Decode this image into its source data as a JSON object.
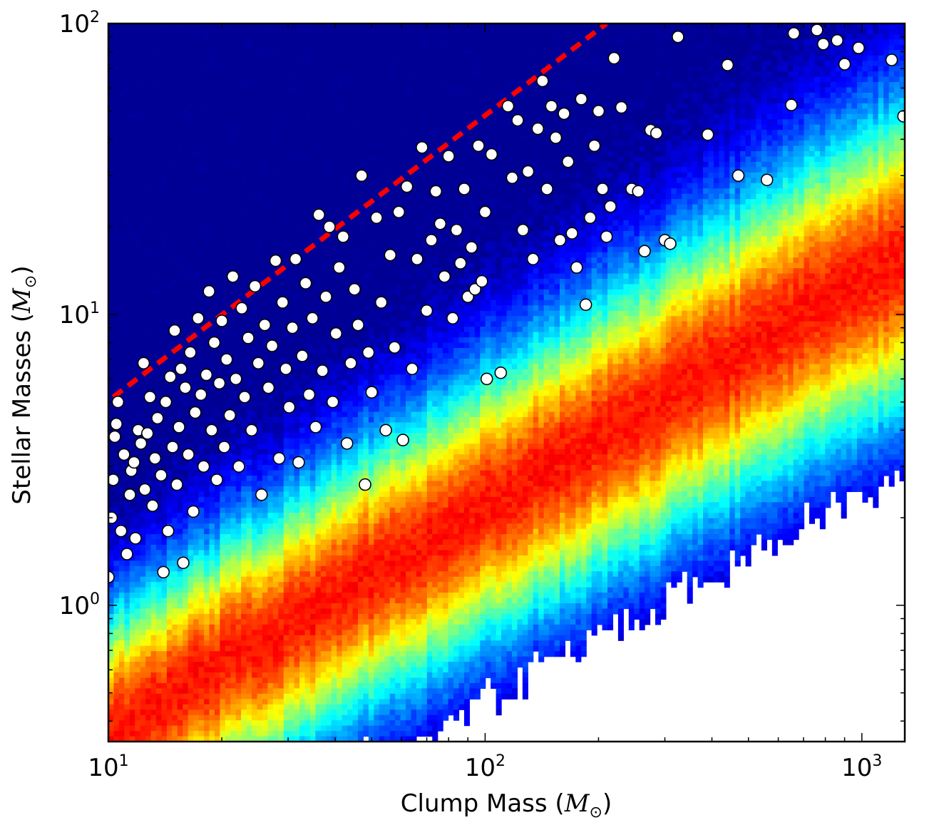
{
  "chart_data": {
    "type": "scatter",
    "xlabel": "Clump Mass (M⊙)",
    "xlabel_parts": {
      "prefix": "Clump Mass (",
      "symbol": "M",
      "sub": "⊙",
      "suffix": ")"
    },
    "ylabel": "Stellar Masses (M⊙)",
    "ylabel_parts": {
      "prefix": "Stellar Masses (",
      "symbol": "M",
      "sub": "⊙",
      "suffix": ")"
    },
    "xscale": "log",
    "yscale": "log",
    "xlim": [
      10,
      1300
    ],
    "ylim": [
      0.34,
      100
    ],
    "grid": false,
    "legend": "none",
    "x_ticks": [
      {
        "value": 10,
        "base": "10",
        "exp": "1"
      },
      {
        "value": 100,
        "base": "10",
        "exp": "2"
      },
      {
        "value": 1000,
        "base": "10",
        "exp": "3"
      }
    ],
    "y_ticks": [
      {
        "value": 1,
        "base": "10",
        "exp": "0"
      },
      {
        "value": 10,
        "base": "10",
        "exp": "1"
      },
      {
        "value": 100,
        "base": "10",
        "exp": "2"
      }
    ],
    "background": {
      "type": "heatmap",
      "colormap": "jet",
      "description_ridge": "density peak follows approx M* = 0.06 * Mclump^0.78"
    },
    "reference_line": {
      "style": "dashed",
      "color": "#ff0000",
      "points": [
        [
          10.3,
          5.2
        ],
        [
          210,
          100
        ]
      ]
    },
    "series": [
      {
        "marker": "circle",
        "fill": "#ffffff",
        "edge": "#000000",
        "points": [
          [
            10,
            1.25
          ],
          [
            10.2,
            2.0
          ],
          [
            10.3,
            2.7
          ],
          [
            10.4,
            3.8
          ],
          [
            10.5,
            4.2
          ],
          [
            10.6,
            5.0
          ],
          [
            10.8,
            1.8
          ],
          [
            11,
            3.3
          ],
          [
            11.2,
            1.5
          ],
          [
            11.4,
            2.4
          ],
          [
            11.5,
            2.9
          ],
          [
            11.7,
            3.1
          ],
          [
            11.8,
            1.7
          ],
          [
            12,
            4.0
          ],
          [
            12.2,
            3.6
          ],
          [
            12.4,
            6.8
          ],
          [
            12.5,
            2.5
          ],
          [
            12.7,
            3.9
          ],
          [
            12.9,
            5.2
          ],
          [
            13.1,
            2.2
          ],
          [
            13.3,
            3.2
          ],
          [
            13.5,
            4.4
          ],
          [
            13.8,
            2.8
          ],
          [
            14,
            1.3
          ],
          [
            14.2,
            5.0
          ],
          [
            14.4,
            1.8
          ],
          [
            14.6,
            6.1
          ],
          [
            14.8,
            3.5
          ],
          [
            15,
            8.8
          ],
          [
            15.2,
            2.6
          ],
          [
            15.4,
            4.1
          ],
          [
            15.6,
            6.5
          ],
          [
            15.8,
            1.4
          ],
          [
            16,
            5.6
          ],
          [
            16.3,
            3.3
          ],
          [
            16.5,
            7.4
          ],
          [
            16.8,
            2.1
          ],
          [
            17,
            4.6
          ],
          [
            17.3,
            9.7
          ],
          [
            17.6,
            5.3
          ],
          [
            17.9,
            3.0
          ],
          [
            18.2,
            6.2
          ],
          [
            18.5,
            12.0
          ],
          [
            18.8,
            4.0
          ],
          [
            19.1,
            8.0
          ],
          [
            19.4,
            2.7
          ],
          [
            19.7,
            5.8
          ],
          [
            20,
            9.5
          ],
          [
            20.3,
            3.5
          ],
          [
            20.6,
            7.0
          ],
          [
            21,
            4.5
          ],
          [
            21.4,
            13.5
          ],
          [
            21.8,
            6.0
          ],
          [
            22.2,
            3.0
          ],
          [
            22.6,
            10.5
          ],
          [
            23,
            5.2
          ],
          [
            23.5,
            8.3
          ],
          [
            24,
            4.0
          ],
          [
            24.5,
            12.5
          ],
          [
            25,
            6.8
          ],
          [
            25.5,
            2.4
          ],
          [
            26,
            9.2
          ],
          [
            26.6,
            5.6
          ],
          [
            27.2,
            7.8
          ],
          [
            27.8,
            15.3
          ],
          [
            28.4,
            3.2
          ],
          [
            29,
            11.0
          ],
          [
            29.6,
            6.5
          ],
          [
            30.2,
            4.8
          ],
          [
            30.8,
            9.0
          ],
          [
            31.4,
            15.5
          ],
          [
            32,
            3.1
          ],
          [
            32.7,
            7.2
          ],
          [
            33.4,
            12.8
          ],
          [
            34.1,
            5.3
          ],
          [
            34.8,
            9.7
          ],
          [
            35.5,
            4.1
          ],
          [
            36.2,
            22.0
          ],
          [
            37,
            6.4
          ],
          [
            37.8,
            11.5
          ],
          [
            38.6,
            20.0
          ],
          [
            39.4,
            5.0
          ],
          [
            40.2,
            8.6
          ],
          [
            41,
            14.5
          ],
          [
            42,
            18.5
          ],
          [
            43,
            3.6
          ],
          [
            44,
            6.8
          ],
          [
            45,
            12.2
          ],
          [
            46,
            9.2
          ],
          [
            47,
            30.0
          ],
          [
            48,
            2.6
          ],
          [
            49,
            7.4
          ],
          [
            50,
            5.4
          ],
          [
            51.5,
            21.5
          ],
          [
            53,
            11.0
          ],
          [
            54.5,
            4.0
          ],
          [
            56,
            16.0
          ],
          [
            57.5,
            7.7
          ],
          [
            59,
            22.5
          ],
          [
            60.5,
            3.7
          ],
          [
            62,
            27.5
          ],
          [
            64,
            6.5
          ],
          [
            66,
            15.5
          ],
          [
            68,
            37.5
          ],
          [
            70,
            10.3
          ],
          [
            72,
            18.0
          ],
          [
            74,
            26.5
          ],
          [
            76,
            20.5
          ],
          [
            78,
            13.5
          ],
          [
            80,
            35.0
          ],
          [
            82,
            9.7
          ],
          [
            84,
            19.5
          ],
          [
            86,
            15.0
          ],
          [
            88,
            27.0
          ],
          [
            90,
            11.5
          ],
          [
            92,
            17.0
          ],
          [
            94,
            12.2
          ],
          [
            96,
            38.0
          ],
          [
            98,
            13.0
          ],
          [
            100,
            22.5
          ],
          [
            101,
            6.0
          ],
          [
            104,
            35.5
          ],
          [
            110,
            6.3
          ],
          [
            115,
            52.0
          ],
          [
            118,
            29.5
          ],
          [
            122,
            46.5
          ],
          [
            126,
            19.5
          ],
          [
            130,
            31.0
          ],
          [
            134,
            15.5
          ],
          [
            138,
            43.5
          ],
          [
            142,
            63.5
          ],
          [
            146,
            27.0
          ],
          [
            150,
            52.0
          ],
          [
            154,
            40.5
          ],
          [
            158,
            18.0
          ],
          [
            162,
            49.0
          ],
          [
            166,
            33.5
          ],
          [
            170,
            19.0
          ],
          [
            175,
            14.5
          ],
          [
            180,
            55.0
          ],
          [
            185,
            10.8
          ],
          [
            190,
            21.5
          ],
          [
            195,
            38.0
          ],
          [
            200,
            50.0
          ],
          [
            205,
            27.0
          ],
          [
            210,
            18.5
          ],
          [
            215,
            23.5
          ],
          [
            220,
            76.0
          ],
          [
            230,
            51.5
          ],
          [
            245,
            27.0
          ],
          [
            255,
            26.5
          ],
          [
            265,
            16.5
          ],
          [
            275,
            43.0
          ],
          [
            285,
            42.0
          ],
          [
            300,
            18.0
          ],
          [
            310,
            17.5
          ],
          [
            325,
            90.0
          ],
          [
            390,
            41.5
          ],
          [
            440,
            72.0
          ],
          [
            470,
            30.0
          ],
          [
            560,
            29.0
          ],
          [
            650,
            52.5
          ],
          [
            660,
            92.5
          ],
          [
            760,
            95.0
          ],
          [
            790,
            85.0
          ],
          [
            860,
            87.5
          ],
          [
            900,
            72.5
          ],
          [
            980,
            82.5
          ],
          [
            1200,
            75.0
          ],
          [
            1290,
            48.0
          ]
        ]
      }
    ]
  }
}
